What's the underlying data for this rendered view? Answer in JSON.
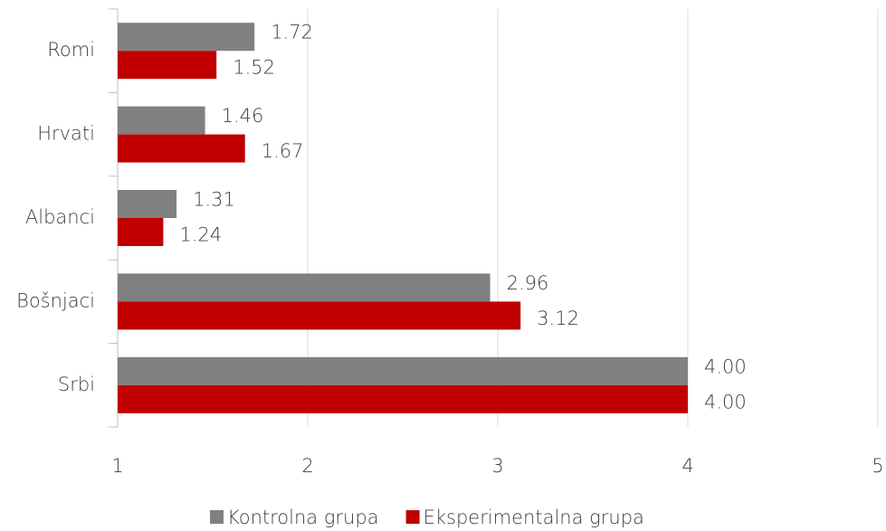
{
  "chart_data": {
    "type": "bar",
    "orientation": "horizontal",
    "categories": [
      "Romi",
      "Hrvati",
      "Albanci",
      "Bošnjaci",
      "Srbi"
    ],
    "series": [
      {
        "name": "Kontrolna grupa",
        "color": "#808080",
        "values": [
          1.72,
          1.46,
          1.31,
          2.96,
          4
        ],
        "value_labels": [
          "1.72",
          "1.46",
          "1.31",
          "2.96",
          "4.00"
        ]
      },
      {
        "name": "Eksperimentalna grupa",
        "color": "#c00000",
        "values": [
          1.52,
          1.67,
          1.24,
          3.12,
          4
        ],
        "value_labels": [
          "1.52",
          "1.67",
          "1.24",
          "3.12",
          "4.00"
        ]
      }
    ],
    "xlim": [
      1,
      5
    ],
    "xticks": [
      1,
      2,
      3,
      4,
      5
    ],
    "grid": true,
    "legend": "bottom"
  }
}
